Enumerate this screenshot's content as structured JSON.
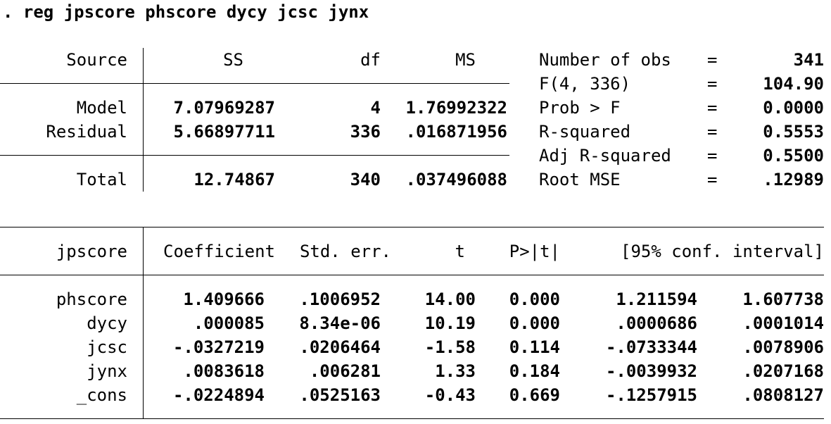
{
  "command": ". reg jpscore phscore dycy jcsc jynx",
  "anova": {
    "headers": {
      "source": "Source",
      "ss": "SS",
      "df": "df",
      "ms": "MS"
    },
    "rows": [
      {
        "source": "Model",
        "ss": "7.07969287",
        "df": "4",
        "ms": "1.76992322"
      },
      {
        "source": "Residual",
        "ss": "5.66897711",
        "df": "336",
        "ms": ".016871956"
      }
    ],
    "total": {
      "source": "Total",
      "ss": "12.74867",
      "df": "340",
      "ms": ".037496088"
    }
  },
  "stats": [
    {
      "label": "Number of obs",
      "eq": "=",
      "value": "341"
    },
    {
      "label": "F(4, 336)",
      "eq": "=",
      "value": "104.90"
    },
    {
      "label": "Prob > F",
      "eq": "=",
      "value": "0.0000"
    },
    {
      "label": "R-squared",
      "eq": "=",
      "value": "0.5553"
    },
    {
      "label": "Adj R-squared",
      "eq": "=",
      "value": "0.5500"
    },
    {
      "label": "Root MSE",
      "eq": "=",
      "value": ".12989"
    }
  ],
  "coef_table": {
    "headers": {
      "depvar": "jpscore",
      "coef": "Coefficient",
      "se": "Std. err.",
      "t": "t",
      "p": "P>|t|",
      "ci": "[95% conf. interval]"
    },
    "rows": [
      {
        "var": "phscore",
        "coef": "1.409666",
        "se": ".1006952",
        "t": "14.00",
        "p": "0.000",
        "lo": "1.211594",
        "hi": "1.607738"
      },
      {
        "var": "dycy",
        "coef": ".000085",
        "se": "8.34e-06",
        "t": "10.19",
        "p": "0.000",
        "lo": ".0000686",
        "hi": ".0001014"
      },
      {
        "var": "jcsc",
        "coef": "-.0327219",
        "se": ".0206464",
        "t": "-1.58",
        "p": "0.114",
        "lo": "-.0733344",
        "hi": ".0078906"
      },
      {
        "var": "jynx",
        "coef": ".0083618",
        "se": ".006281",
        "t": "1.33",
        "p": "0.184",
        "lo": "-.0039932",
        "hi": ".0207168"
      },
      {
        "var": "_cons",
        "coef": "-.0224894",
        "se": ".0525163",
        "t": "-0.43",
        "p": "0.669",
        "lo": "-.1257915",
        "hi": ".0808127"
      }
    ]
  }
}
